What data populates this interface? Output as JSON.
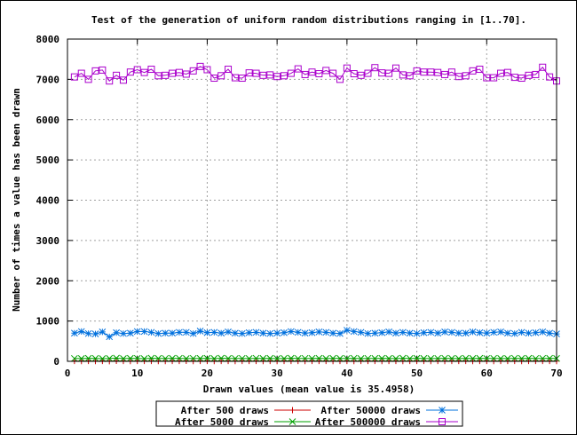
{
  "chart_data": {
    "type": "line",
    "title": "Test of the generation of uniform random distributions ranging in [1..70].",
    "xlabel": "Drawn values (mean value is 35.4958)",
    "ylabel": "Number of times a value has been drawn",
    "xlim": [
      0,
      70
    ],
    "ylim": [
      0,
      8000
    ],
    "xticks": [
      0,
      10,
      20,
      30,
      40,
      50,
      60,
      70
    ],
    "yticks": [
      0,
      1000,
      2000,
      3000,
      4000,
      5000,
      6000,
      7000,
      8000
    ],
    "grid": true,
    "legend_position": "bottom-center",
    "x": [
      1,
      2,
      3,
      4,
      5,
      6,
      7,
      8,
      9,
      10,
      11,
      12,
      13,
      14,
      15,
      16,
      17,
      18,
      19,
      20,
      21,
      22,
      23,
      24,
      25,
      26,
      27,
      28,
      29,
      30,
      31,
      32,
      33,
      34,
      35,
      36,
      37,
      38,
      39,
      40,
      41,
      42,
      43,
      44,
      45,
      46,
      47,
      48,
      49,
      50,
      51,
      52,
      53,
      54,
      55,
      56,
      57,
      58,
      59,
      60,
      61,
      62,
      63,
      64,
      65,
      66,
      67,
      68,
      69,
      70
    ],
    "series": [
      {
        "name": "After 500 draws",
        "marker": "plus",
        "color": "#cc0000",
        "values": [
          7,
          5,
          9,
          6,
          8,
          4,
          10,
          7,
          6,
          8,
          7,
          9,
          5,
          6,
          7,
          8,
          10,
          6,
          7,
          9,
          5,
          8,
          7,
          6,
          9,
          7,
          8,
          6,
          7,
          5,
          8,
          9,
          7,
          6,
          8,
          7,
          9,
          6,
          7,
          8,
          5,
          7,
          9,
          8,
          6,
          7,
          8,
          6,
          7,
          9,
          8,
          6,
          7,
          5,
          8,
          9,
          7,
          6,
          8,
          7,
          6,
          9,
          7,
          8,
          6,
          7,
          9,
          8,
          7,
          6
        ]
      },
      {
        "name": "After 5000 draws",
        "marker": "x",
        "color": "#00a000",
        "values": [
          70,
          68,
          75,
          72,
          66,
          71,
          80,
          69,
          74,
          73,
          67,
          78,
          72,
          70,
          74,
          76,
          69,
          73,
          71,
          75,
          68,
          77,
          72,
          70,
          73,
          69,
          76,
          71,
          74,
          67,
          72,
          78,
          70,
          73,
          71,
          75,
          69,
          74,
          72,
          70,
          76,
          68,
          73,
          71,
          75,
          72,
          69,
          77,
          70,
          74,
          72,
          68,
          73,
          76,
          71,
          69,
          74,
          72,
          75,
          70,
          73,
          71,
          68,
          76,
          72,
          74,
          70,
          73,
          75,
          71
        ]
      },
      {
        "name": "After 50000 draws",
        "marker": "star",
        "color": "#0070dd",
        "values": [
          700,
          740,
          690,
          680,
          730,
          610,
          710,
          690,
          700,
          740,
          740,
          720,
          690,
          700,
          700,
          720,
          720,
          690,
          750,
          710,
          720,
          700,
          730,
          700,
          690,
          710,
          720,
          700,
          690,
          700,
          710,
          740,
          720,
          700,
          710,
          730,
          720,
          700,
          690,
          770,
          740,
          720,
          690,
          700,
          710,
          730,
          700,
          720,
          700,
          690,
          710,
          720,
          700,
          730,
          720,
          700,
          700,
          730,
          710,
          700,
          720,
          730,
          700,
          690,
          720,
          700,
          710,
          730,
          700,
          680
        ]
      },
      {
        "name": "After 500000 draws",
        "marker": "square",
        "color": "#aa00cc",
        "values": [
          7060,
          7150,
          7000,
          7210,
          7230,
          6960,
          7100,
          6980,
          7180,
          7240,
          7170,
          7250,
          7090,
          7100,
          7150,
          7170,
          7130,
          7210,
          7320,
          7240,
          7030,
          7090,
          7250,
          7040,
          7030,
          7160,
          7150,
          7100,
          7110,
          7070,
          7090,
          7150,
          7260,
          7120,
          7180,
          7140,
          7220,
          7150,
          7000,
          7280,
          7140,
          7100,
          7150,
          7290,
          7160,
          7150,
          7280,
          7110,
          7090,
          7210,
          7180,
          7180,
          7170,
          7120,
          7180,
          7070,
          7090,
          7210,
          7250,
          7040,
          7040,
          7150,
          7170,
          7050,
          7030,
          7100,
          7120,
          7300,
          7060,
          6960
        ]
      }
    ]
  }
}
